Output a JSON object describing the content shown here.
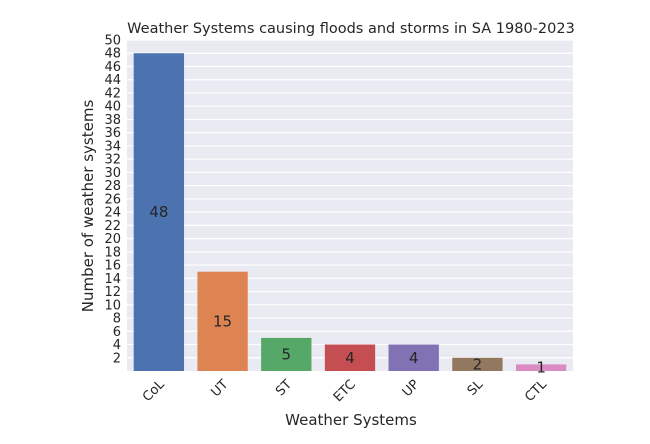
{
  "chart_data": {
    "type": "bar",
    "title": "Weather Systems causing floods and storms in SA 1980-2023",
    "xlabel": "Weather Systems",
    "ylabel": "Number of weather systems",
    "categories": [
      "CoL",
      "UT",
      "ST",
      "ETC",
      "UP",
      "SL",
      "CTL"
    ],
    "values": [
      48,
      15,
      5,
      4,
      4,
      2,
      1
    ],
    "data_labels": [
      "48",
      "15",
      "5",
      "4",
      "4",
      "2",
      "1"
    ],
    "colors": [
      "#4c72b0",
      "#dd8452",
      "#55a868",
      "#c44e52",
      "#8172b3",
      "#937860",
      "#da8bc3"
    ],
    "ylim": [
      0,
      50
    ],
    "yticks": [
      2,
      4,
      6,
      8,
      10,
      12,
      14,
      16,
      18,
      20,
      22,
      24,
      26,
      28,
      30,
      32,
      34,
      36,
      38,
      40,
      42,
      44,
      46,
      48,
      50
    ],
    "grid": true,
    "plot_background": "#eaeaf2",
    "grid_color": "#ffffff"
  }
}
